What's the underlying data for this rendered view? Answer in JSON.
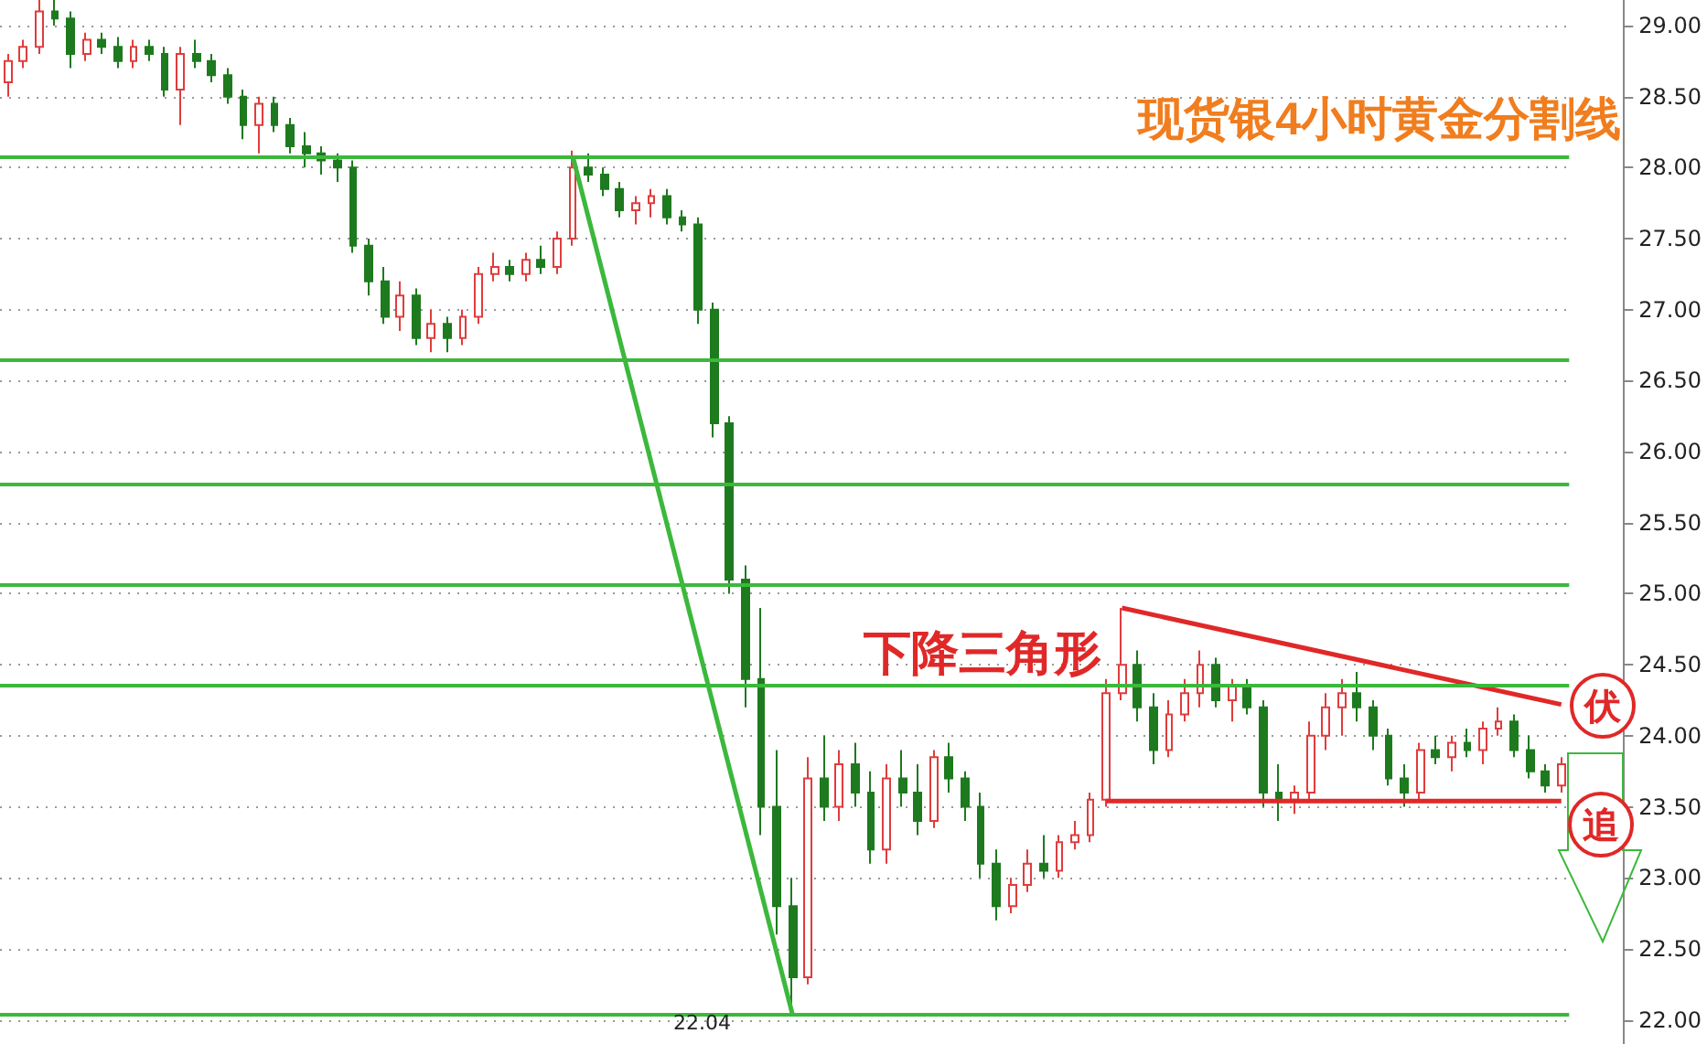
{
  "chart_data": {
    "type": "candlestick",
    "title": "现货银4小时黄金分割线",
    "categories": [
      null,
      null,
      null,
      null,
      null,
      null,
      null,
      null,
      null,
      null,
      null,
      null,
      null,
      null,
      null,
      null,
      null,
      null,
      null,
      null,
      null,
      null,
      null,
      null,
      null,
      null,
      null,
      null,
      null,
      null,
      null,
      null,
      null,
      null,
      null,
      null,
      null,
      null,
      null,
      null,
      null,
      null,
      null,
      null,
      null,
      null,
      null,
      null,
      null,
      null,
      null,
      null,
      null,
      null,
      null,
      null,
      null,
      null,
      null,
      null,
      null,
      null,
      null,
      null,
      null,
      null,
      null,
      null,
      null,
      null,
      null,
      null,
      null,
      null,
      null,
      null,
      null,
      null,
      null,
      null,
      null,
      null,
      null,
      null,
      null,
      null,
      null,
      null,
      null,
      null,
      null,
      null,
      null,
      null,
      null,
      null,
      null,
      null,
      null,
      null
    ],
    "series": [
      {
        "colors": [
          "#e03c3c",
          "#e03c3c",
          "#e03c3c",
          "#1e7a1e",
          "#1e7a1e",
          "#e03c3c",
          "#1e7a1e",
          "#1e7a1e",
          "#e03c3c",
          "#1e7a1e",
          "#1e7a1e",
          "#e03c3c",
          "#1e7a1e",
          "#1e7a1e",
          "#1e7a1e",
          "#1e7a1e",
          "#e03c3c",
          "#1e7a1e",
          "#1e7a1e",
          "#1e7a1e",
          "#1e7a1e",
          "#1e7a1e",
          "#1e7a1e",
          "#1e7a1e",
          "#1e7a1e",
          "#e03c3c",
          "#1e7a1e",
          "#e03c3c",
          "#1e7a1e",
          "#e03c3c",
          "#e03c3c",
          "#e03c3c",
          "#1e7a1e",
          "#e03c3c",
          "#1e7a1e",
          "#e03c3c",
          "#e03c3c",
          "#1e7a1e",
          "#1e7a1e",
          "#1e7a1e",
          "#e03c3c",
          "#e03c3c",
          "#1e7a1e",
          "#1e7a1e",
          "#1e7a1e",
          "#1e7a1e",
          "#1e7a1e",
          "#1e7a1e",
          "#1e7a1e",
          "#1e7a1e",
          "#1e7a1e",
          "#e03c3c",
          "#1e7a1e",
          "#e03c3c",
          "#1e7a1e",
          "#1e7a1e",
          "#e03c3c",
          "#1e7a1e",
          "#1e7a1e",
          "#e03c3c",
          "#1e7a1e",
          "#1e7a1e",
          "#1e7a1e",
          "#1e7a1e",
          "#e03c3c",
          "#e03c3c",
          "#1e7a1e",
          "#e03c3c",
          "#e03c3c",
          "#e03c3c",
          "#e03c3c",
          "#e03c3c",
          "#1e7a1e",
          "#1e7a1e",
          "#e03c3c",
          "#e03c3c",
          "#e03c3c",
          "#1e7a1e",
          "#e03c3c",
          "#1e7a1e",
          "#1e7a1e",
          "#1e7a1e",
          "#e03c3c",
          "#e03c3c",
          "#e03c3c",
          "#e03c3c",
          "#1e7a1e",
          "#1e7a1e",
          "#1e7a1e",
          "#1e7a1e",
          "#e03c3c",
          "#1e7a1e",
          "#e03c3c",
          "#1e7a1e",
          "#e03c3c",
          "#e03c3c",
          "#1e7a1e",
          "#1e7a1e",
          "#1e7a1e",
          "#e03c3c"
        ],
        "ohlc": [
          [
            28.6,
            28.8,
            28.5,
            28.75
          ],
          [
            28.75,
            28.9,
            28.7,
            28.85
          ],
          [
            28.85,
            29.2,
            28.8,
            29.1
          ],
          [
            29.1,
            29.18,
            29.0,
            29.05
          ],
          [
            29.05,
            29.1,
            28.7,
            28.8
          ],
          [
            28.8,
            28.95,
            28.75,
            28.9
          ],
          [
            28.9,
            28.95,
            28.8,
            28.85
          ],
          [
            28.85,
            28.92,
            28.7,
            28.75
          ],
          [
            28.75,
            28.9,
            28.7,
            28.85
          ],
          [
            28.85,
            28.9,
            28.75,
            28.8
          ],
          [
            28.8,
            28.85,
            28.5,
            28.55
          ],
          [
            28.55,
            28.85,
            28.3,
            28.8
          ],
          [
            28.8,
            28.9,
            28.7,
            28.75
          ],
          [
            28.75,
            28.8,
            28.6,
            28.65
          ],
          [
            28.65,
            28.7,
            28.45,
            28.5
          ],
          [
            28.5,
            28.55,
            28.2,
            28.3
          ],
          [
            28.3,
            28.5,
            28.1,
            28.45
          ],
          [
            28.45,
            28.5,
            28.25,
            28.3
          ],
          [
            28.3,
            28.35,
            28.1,
            28.15
          ],
          [
            28.15,
            28.25,
            28.0,
            28.1
          ],
          [
            28.1,
            28.15,
            27.95,
            28.05
          ],
          [
            28.05,
            28.1,
            27.9,
            28.0
          ],
          [
            28.0,
            28.05,
            27.4,
            27.45
          ],
          [
            27.45,
            27.5,
            27.1,
            27.2
          ],
          [
            27.2,
            27.3,
            26.9,
            26.95
          ],
          [
            26.95,
            27.2,
            26.85,
            27.1
          ],
          [
            27.1,
            27.15,
            26.75,
            26.8
          ],
          [
            26.8,
            27.0,
            26.7,
            26.9
          ],
          [
            26.9,
            26.95,
            26.7,
            26.8
          ],
          [
            26.8,
            27.0,
            26.75,
            26.95
          ],
          [
            26.95,
            27.3,
            26.9,
            27.25
          ],
          [
            27.25,
            27.4,
            27.2,
            27.3
          ],
          [
            27.3,
            27.35,
            27.2,
            27.25
          ],
          [
            27.25,
            27.4,
            27.2,
            27.35
          ],
          [
            27.35,
            27.45,
            27.25,
            27.3
          ],
          [
            27.3,
            27.55,
            27.25,
            27.5
          ],
          [
            27.5,
            28.12,
            27.45,
            28.0
          ],
          [
            28.0,
            28.1,
            27.9,
            27.95
          ],
          [
            27.95,
            28.0,
            27.8,
            27.85
          ],
          [
            27.85,
            27.9,
            27.65,
            27.7
          ],
          [
            27.7,
            27.8,
            27.6,
            27.75
          ],
          [
            27.75,
            27.85,
            27.65,
            27.8
          ],
          [
            27.8,
            27.85,
            27.6,
            27.65
          ],
          [
            27.65,
            27.7,
            27.55,
            27.6
          ],
          [
            27.6,
            27.65,
            26.9,
            27.0
          ],
          [
            27.0,
            27.05,
            26.1,
            26.2
          ],
          [
            26.2,
            26.25,
            25.0,
            25.1
          ],
          [
            25.1,
            25.2,
            24.2,
            24.4
          ],
          [
            24.4,
            24.9,
            23.3,
            23.5
          ],
          [
            23.5,
            23.9,
            22.6,
            22.8
          ],
          [
            22.8,
            23.0,
            22.04,
            22.3
          ],
          [
            22.3,
            23.85,
            22.25,
            23.7
          ],
          [
            23.7,
            24.0,
            23.4,
            23.5
          ],
          [
            23.5,
            23.9,
            23.4,
            23.8
          ],
          [
            23.8,
            23.95,
            23.5,
            23.6
          ],
          [
            23.6,
            23.75,
            23.1,
            23.2
          ],
          [
            23.2,
            23.8,
            23.1,
            23.7
          ],
          [
            23.7,
            23.9,
            23.5,
            23.6
          ],
          [
            23.6,
            23.8,
            23.3,
            23.4
          ],
          [
            23.4,
            23.9,
            23.35,
            23.85
          ],
          [
            23.85,
            23.95,
            23.6,
            23.7
          ],
          [
            23.7,
            23.75,
            23.4,
            23.5
          ],
          [
            23.5,
            23.6,
            23.0,
            23.1
          ],
          [
            23.1,
            23.2,
            22.7,
            22.8
          ],
          [
            22.8,
            23.0,
            22.75,
            22.95
          ],
          [
            22.95,
            23.2,
            22.9,
            23.1
          ],
          [
            23.1,
            23.3,
            23.0,
            23.05
          ],
          [
            23.05,
            23.3,
            23.0,
            23.25
          ],
          [
            23.25,
            23.4,
            23.2,
            23.3
          ],
          [
            23.3,
            23.6,
            23.25,
            23.55
          ],
          [
            23.55,
            24.4,
            23.5,
            24.3
          ],
          [
            24.3,
            24.9,
            24.25,
            24.5
          ],
          [
            24.5,
            24.6,
            24.1,
            24.2
          ],
          [
            24.2,
            24.3,
            23.8,
            23.9
          ],
          [
            23.9,
            24.25,
            23.85,
            24.15
          ],
          [
            24.15,
            24.4,
            24.1,
            24.3
          ],
          [
            24.3,
            24.6,
            24.2,
            24.5
          ],
          [
            24.5,
            24.55,
            24.2,
            24.25
          ],
          [
            24.25,
            24.4,
            24.1,
            24.35
          ],
          [
            24.35,
            24.4,
            24.15,
            24.2
          ],
          [
            24.2,
            24.25,
            23.5,
            23.6
          ],
          [
            23.6,
            23.8,
            23.4,
            23.55
          ],
          [
            23.55,
            23.65,
            23.45,
            23.6
          ],
          [
            23.6,
            24.1,
            23.55,
            24.0
          ],
          [
            24.0,
            24.3,
            23.9,
            24.2
          ],
          [
            24.2,
            24.4,
            24.0,
            24.3
          ],
          [
            24.3,
            24.45,
            24.1,
            24.2
          ],
          [
            24.2,
            24.25,
            23.9,
            24.0
          ],
          [
            24.0,
            24.05,
            23.65,
            23.7
          ],
          [
            23.7,
            23.8,
            23.5,
            23.6
          ],
          [
            23.6,
            23.95,
            23.55,
            23.9
          ],
          [
            23.9,
            24.0,
            23.8,
            23.85
          ],
          [
            23.85,
            24.0,
            23.75,
            23.95
          ],
          [
            23.95,
            24.05,
            23.85,
            23.9
          ],
          [
            23.9,
            24.1,
            23.8,
            24.05
          ],
          [
            24.05,
            24.2,
            24.0,
            24.1
          ],
          [
            24.1,
            24.15,
            23.85,
            23.9
          ],
          [
            23.9,
            24.0,
            23.7,
            23.75
          ],
          [
            23.75,
            23.8,
            23.6,
            23.65
          ],
          [
            23.65,
            23.85,
            23.6,
            23.8
          ]
        ]
      },
      {
        "type": "line",
        "color": "#3cb83c",
        "values": [
          null,
          null,
          null,
          null,
          null,
          null,
          null,
          null,
          null,
          null,
          null,
          null,
          null,
          null,
          null,
          null,
          null,
          null,
          null,
          null,
          null,
          null,
          null,
          null,
          null,
          null,
          null,
          null,
          null,
          null,
          null,
          null,
          null,
          null,
          null,
          null,
          28.08,
          null,
          null,
          null,
          null,
          null,
          null,
          null,
          null,
          null,
          null,
          null,
          null,
          null,
          22.04,
          null,
          null,
          null,
          null,
          null,
          null,
          null,
          null,
          null,
          null,
          null,
          null,
          null,
          null,
          null,
          null,
          null,
          null,
          null,
          null,
          null,
          null,
          null,
          null,
          null,
          null,
          null,
          null,
          null,
          null,
          null,
          null,
          null,
          null,
          null,
          null,
          null,
          null,
          null,
          null,
          null,
          null,
          null,
          null,
          null,
          null,
          null,
          null,
          null
        ]
      },
      {
        "type": "line",
        "color": "#e02828",
        "values": [
          null,
          null,
          null,
          null,
          null,
          null,
          null,
          null,
          null,
          null,
          null,
          null,
          null,
          null,
          null,
          null,
          null,
          null,
          null,
          null,
          null,
          null,
          null,
          null,
          null,
          null,
          null,
          null,
          null,
          null,
          null,
          null,
          null,
          null,
          null,
          null,
          null,
          null,
          null,
          null,
          null,
          null,
          null,
          null,
          null,
          null,
          null,
          null,
          null,
          null,
          null,
          null,
          null,
          null,
          null,
          null,
          null,
          null,
          null,
          null,
          null,
          null,
          null,
          null,
          null,
          null,
          null,
          null,
          null,
          null,
          null,
          24.9,
          null,
          null,
          null,
          null,
          null,
          null,
          null,
          null,
          null,
          null,
          null,
          null,
          null,
          null,
          null,
          null,
          null,
          null,
          null,
          null,
          null,
          null,
          null,
          null,
          null,
          null,
          null,
          24.22
        ]
      },
      {
        "type": "line",
        "color": "#e02828",
        "values": [
          null,
          null,
          null,
          null,
          null,
          null,
          null,
          null,
          null,
          null,
          null,
          null,
          null,
          null,
          null,
          null,
          null,
          null,
          null,
          null,
          null,
          null,
          null,
          null,
          null,
          null,
          null,
          null,
          null,
          null,
          null,
          null,
          null,
          null,
          null,
          null,
          null,
          null,
          null,
          null,
          null,
          null,
          null,
          null,
          null,
          null,
          null,
          null,
          null,
          null,
          null,
          null,
          null,
          null,
          null,
          null,
          null,
          null,
          null,
          null,
          null,
          null,
          null,
          null,
          null,
          null,
          null,
          null,
          null,
          null,
          23.54,
          null,
          null,
          null,
          null,
          null,
          null,
          null,
          null,
          null,
          null,
          null,
          null,
          null,
          null,
          null,
          null,
          null,
          null,
          null,
          null,
          null,
          null,
          null,
          null,
          null,
          null,
          null,
          null,
          23.54
        ]
      }
    ],
    "ylim": [
      21.83,
      29.18
    ],
    "yticks": [
      {
        "value": 22,
        "label": "22.00"
      },
      {
        "value": 22.5,
        "label": "22.50"
      },
      {
        "value": 23,
        "label": "23.00"
      },
      {
        "value": 23.5,
        "label": "23.50"
      },
      {
        "value": 24,
        "label": "24.00"
      },
      {
        "value": 24.5,
        "label": "24.50"
      },
      {
        "value": 25,
        "label": "25.00"
      },
      {
        "value": 25.5,
        "label": "25.50"
      },
      {
        "value": 26,
        "label": "26.00"
      },
      {
        "value": 26.5,
        "label": "26.50"
      },
      {
        "value": 27,
        "label": "27.00"
      },
      {
        "value": 27.5,
        "label": "27.50"
      },
      {
        "value": 28,
        "label": "28.00"
      },
      {
        "value": 28.5,
        "label": "28.50"
      },
      {
        "value": 29,
        "label": "29.00"
      }
    ],
    "ref_lines": [
      {
        "axis": "y",
        "value": 28.08,
        "color": "#3cb83c"
      },
      {
        "axis": "y",
        "value": 26.65,
        "color": "#3cb83c"
      },
      {
        "axis": "y",
        "value": 25.77,
        "color": "#3cb83c"
      },
      {
        "axis": "y",
        "value": 25.06,
        "color": "#3cb83c"
      },
      {
        "axis": "y",
        "value": 24.35,
        "color": "#3cb83c"
      },
      {
        "axis": "y",
        "value": 22.04,
        "color": "#3cb83c"
      }
    ],
    "annotations": [
      "下降三角形",
      "伏",
      "追",
      {
        "text": "22.04",
        "y": 22.04
      }
    ],
    "grid": "y",
    "tick_labels": "y"
  }
}
